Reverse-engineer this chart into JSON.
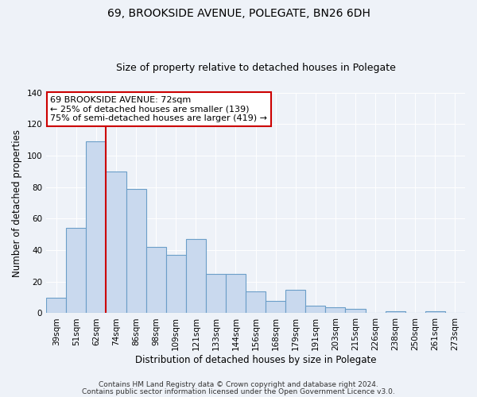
{
  "title": "69, BROOKSIDE AVENUE, POLEGATE, BN26 6DH",
  "subtitle": "Size of property relative to detached houses in Polegate",
  "xlabel": "Distribution of detached houses by size in Polegate",
  "ylabel": "Number of detached properties",
  "bar_labels": [
    "39sqm",
    "51sqm",
    "62sqm",
    "74sqm",
    "86sqm",
    "98sqm",
    "109sqm",
    "121sqm",
    "133sqm",
    "144sqm",
    "156sqm",
    "168sqm",
    "179sqm",
    "191sqm",
    "203sqm",
    "215sqm",
    "226sqm",
    "238sqm",
    "250sqm",
    "261sqm",
    "273sqm"
  ],
  "bar_values": [
    10,
    54,
    109,
    90,
    79,
    42,
    37,
    47,
    25,
    25,
    14,
    8,
    15,
    5,
    4,
    3,
    0,
    1,
    0,
    1,
    0
  ],
  "bar_color": "#c9d9ee",
  "bar_edge_color": "#6b9ec8",
  "vline_color": "#cc0000",
  "vline_x_index": 3,
  "annotation_title": "69 BROOKSIDE AVENUE: 72sqm",
  "annotation_line1": "← 25% of detached houses are smaller (139)",
  "annotation_line2": "75% of semi-detached houses are larger (419) →",
  "annotation_box_facecolor": "#ffffff",
  "annotation_box_edgecolor": "#cc0000",
  "ylim": [
    0,
    140
  ],
  "yticks": [
    0,
    20,
    40,
    60,
    80,
    100,
    120,
    140
  ],
  "footer1": "Contains HM Land Registry data © Crown copyright and database right 2024.",
  "footer2": "Contains public sector information licensed under the Open Government Licence v3.0.",
  "bg_color": "#eef2f8",
  "grid_color": "#ffffff",
  "title_fontsize": 10,
  "subtitle_fontsize": 9,
  "axis_label_fontsize": 8.5,
  "tick_fontsize": 7.5,
  "annotation_fontsize": 8,
  "footer_fontsize": 6.5
}
